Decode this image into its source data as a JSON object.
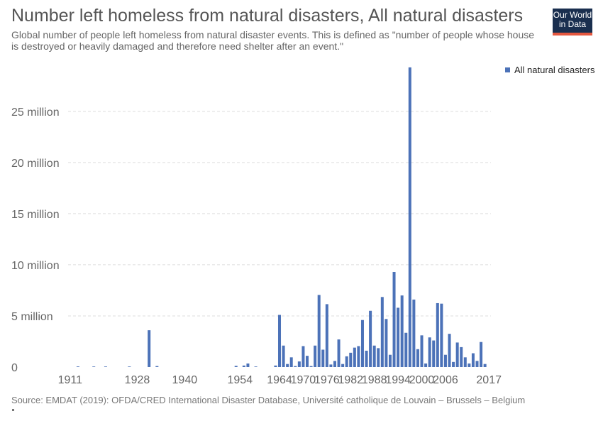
{
  "header": {
    "title": "Number left homeless from natural disasters, All natural disasters",
    "subtitle": "Global number of people left homeless from natural disaster events. This is defined as \"number of people whose house is destroyed or heavily damaged and therefore need shelter after an event.\""
  },
  "logo": {
    "line1": "Our World",
    "line2": "in Data"
  },
  "footer": {
    "source": "Source: EMDAT (2019): OFDA/CRED International Disaster Database, Université catholique de Louvain – Brussels – Belgium"
  },
  "colors": {
    "bar": "#4c72b8",
    "grid": "#dddddd"
  },
  "chart_data": {
    "type": "bar",
    "series_name": "All natural disasters",
    "legend_position": "top-right",
    "grid": true,
    "ylim": [
      0,
      29500000
    ],
    "y_ticks": [
      {
        "value": 0,
        "label": "0"
      },
      {
        "value": 5000000,
        "label": "5 million"
      },
      {
        "value": 10000000,
        "label": "10 million"
      },
      {
        "value": 15000000,
        "label": "15 million"
      },
      {
        "value": 20000000,
        "label": "20 million"
      },
      {
        "value": 25000000,
        "label": "25 million"
      }
    ],
    "x_ticks": [
      1911,
      1928,
      1940,
      1954,
      1964,
      1970,
      1976,
      1982,
      1988,
      1994,
      2000,
      2006,
      2017
    ],
    "x_range": [
      1911,
      2017
    ],
    "data": [
      {
        "x": 1913,
        "y": 60000
      },
      {
        "x": 1917,
        "y": 10000
      },
      {
        "x": 1920,
        "y": 20000
      },
      {
        "x": 1926,
        "y": 10000
      },
      {
        "x": 1931,
        "y": 3600000
      },
      {
        "x": 1933,
        "y": 100000
      },
      {
        "x": 1953,
        "y": 120000
      },
      {
        "x": 1955,
        "y": 150000
      },
      {
        "x": 1956,
        "y": 350000
      },
      {
        "x": 1958,
        "y": 30000
      },
      {
        "x": 1963,
        "y": 150000
      },
      {
        "x": 1964,
        "y": 5100000
      },
      {
        "x": 1965,
        "y": 2100000
      },
      {
        "x": 1966,
        "y": 300000
      },
      {
        "x": 1967,
        "y": 950000
      },
      {
        "x": 1968,
        "y": 100000
      },
      {
        "x": 1969,
        "y": 550000
      },
      {
        "x": 1970,
        "y": 2050000
      },
      {
        "x": 1971,
        "y": 1100000
      },
      {
        "x": 1972,
        "y": 100000
      },
      {
        "x": 1973,
        "y": 2100000
      },
      {
        "x": 1974,
        "y": 7050000
      },
      {
        "x": 1975,
        "y": 1700000
      },
      {
        "x": 1976,
        "y": 6150000
      },
      {
        "x": 1977,
        "y": 250000
      },
      {
        "x": 1978,
        "y": 600000
      },
      {
        "x": 1979,
        "y": 2700000
      },
      {
        "x": 1980,
        "y": 300000
      },
      {
        "x": 1981,
        "y": 1050000
      },
      {
        "x": 1982,
        "y": 1400000
      },
      {
        "x": 1983,
        "y": 1900000
      },
      {
        "x": 1984,
        "y": 2050000
      },
      {
        "x": 1985,
        "y": 4600000
      },
      {
        "x": 1986,
        "y": 1600000
      },
      {
        "x": 1987,
        "y": 5500000
      },
      {
        "x": 1988,
        "y": 2100000
      },
      {
        "x": 1989,
        "y": 1850000
      },
      {
        "x": 1990,
        "y": 6850000
      },
      {
        "x": 1991,
        "y": 4700000
      },
      {
        "x": 1992,
        "y": 1200000
      },
      {
        "x": 1993,
        "y": 9300000
      },
      {
        "x": 1994,
        "y": 5800000
      },
      {
        "x": 1995,
        "y": 7000000
      },
      {
        "x": 1996,
        "y": 3350000
      },
      {
        "x": 1997,
        "y": 29300000
      },
      {
        "x": 1998,
        "y": 6600000
      },
      {
        "x": 1999,
        "y": 1750000
      },
      {
        "x": 2000,
        "y": 3100000
      },
      {
        "x": 2001,
        "y": 350000
      },
      {
        "x": 2002,
        "y": 2900000
      },
      {
        "x": 2003,
        "y": 2600000
      },
      {
        "x": 2004,
        "y": 6250000
      },
      {
        "x": 2005,
        "y": 6200000
      },
      {
        "x": 2006,
        "y": 1200000
      },
      {
        "x": 2007,
        "y": 3250000
      },
      {
        "x": 2008,
        "y": 500000
      },
      {
        "x": 2009,
        "y": 2400000
      },
      {
        "x": 2010,
        "y": 1950000
      },
      {
        "x": 2011,
        "y": 950000
      },
      {
        "x": 2012,
        "y": 350000
      },
      {
        "x": 2013,
        "y": 1350000
      },
      {
        "x": 2014,
        "y": 600000
      },
      {
        "x": 2015,
        "y": 2450000
      },
      {
        "x": 2016,
        "y": 300000
      }
    ]
  }
}
